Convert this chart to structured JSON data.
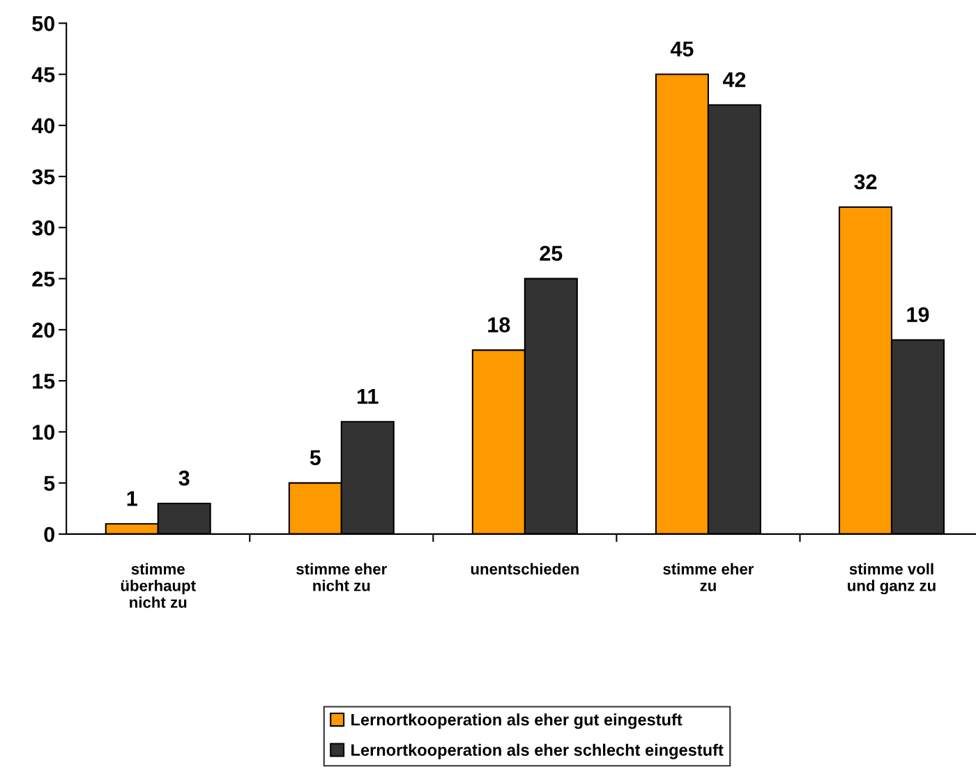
{
  "chart_data": {
    "type": "bar",
    "categories": [
      "stimme\nüberhaupt\nnicht zu",
      "stimme eher\nnicht zu",
      "unentschieden",
      "stimme eher\nzu",
      "stimme voll\nund ganz zu"
    ],
    "series": [
      {
        "name": "Lernortkooperation als eher gut eingestuft",
        "color": "#ff9900",
        "values": [
          1,
          5,
          18,
          45,
          32
        ]
      },
      {
        "name": "Lernortkooperation als eher schlecht eingestuft",
        "color": "#333333",
        "values": [
          3,
          11,
          25,
          42,
          19
        ]
      }
    ],
    "ylim": [
      0,
      50
    ],
    "yticks": [
      0,
      5,
      10,
      15,
      20,
      25,
      30,
      35,
      40,
      45,
      50
    ],
    "data_labels": true,
    "grid": false,
    "legend": "bottom"
  }
}
